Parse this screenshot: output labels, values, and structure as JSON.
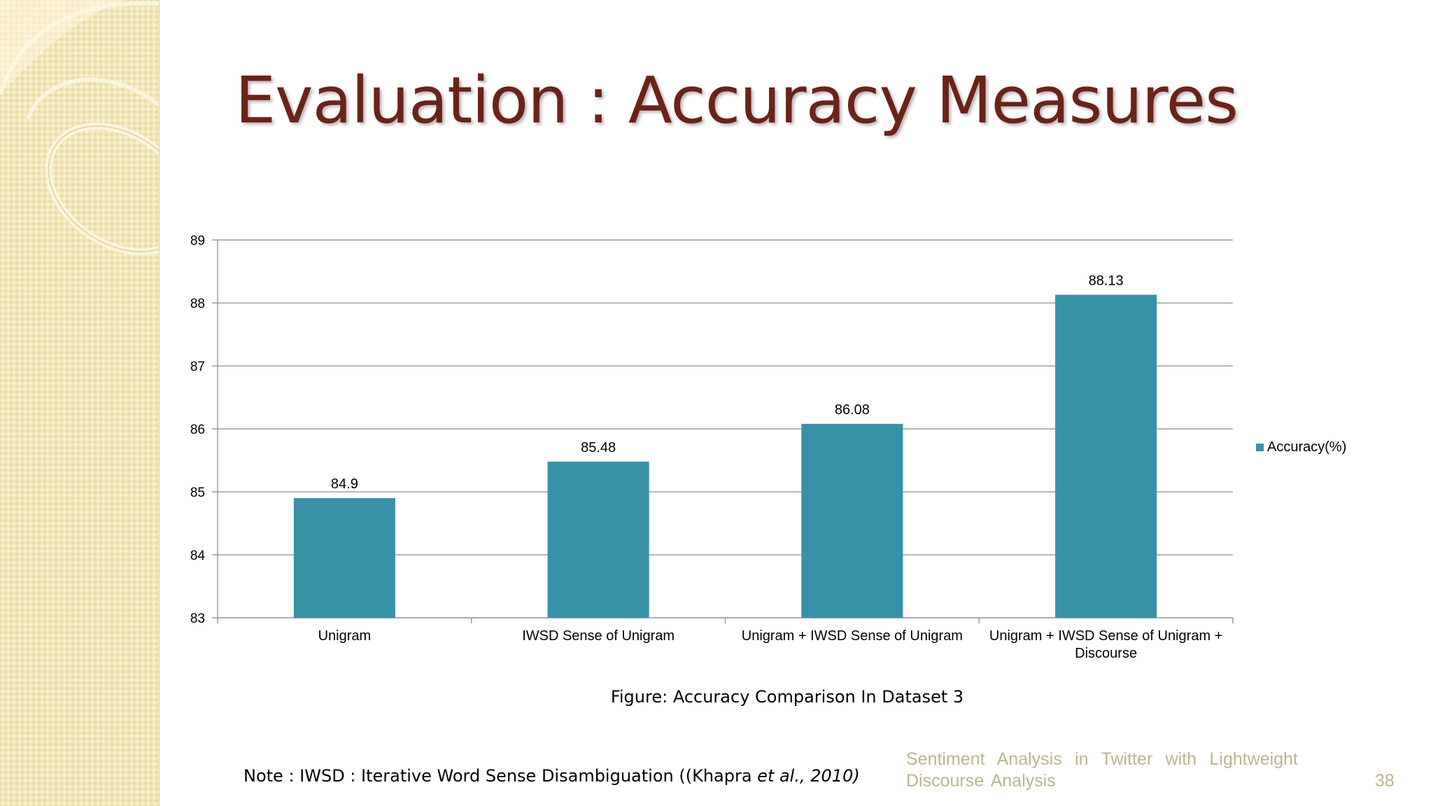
{
  "title": "Evaluation : Accuracy Measures",
  "chart_data": {
    "type": "bar",
    "categories": [
      "Unigram",
      "IWSD Sense of Unigram",
      "Unigram + IWSD Sense of Unigram",
      "Unigram + IWSD Sense of Unigram + Discourse"
    ],
    "series": [
      {
        "name": "Accuracy(%)",
        "values": [
          84.9,
          85.48,
          86.08,
          88.13
        ],
        "labels": [
          "84.9",
          "85.48",
          "86.08",
          "88.13"
        ]
      }
    ],
    "yticks": [
      "83",
      "84",
      "85",
      "86",
      "87",
      "88",
      "89"
    ],
    "ylim": [
      83,
      89
    ],
    "grid": true,
    "legend_position": "right",
    "bar_color": "#3792a8"
  },
  "caption": "Figure: Accuracy Comparison In Dataset 3",
  "note": {
    "prefix": "Note : IWSD : Iterative Word Sense Disambiguation ((Khapra ",
    "italic": "et al., 2010)"
  },
  "footer": {
    "text": "Sentiment Analysis in Twitter with Lightweight Discourse Analysis",
    "page_number": "38"
  }
}
